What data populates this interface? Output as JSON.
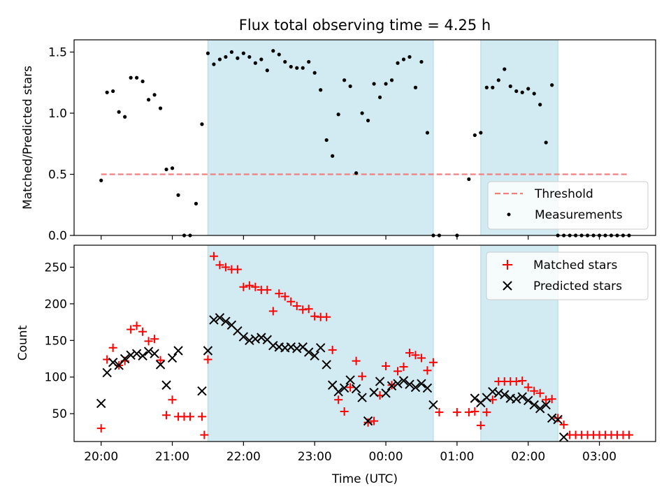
{
  "title": "Flux total observing time = 4.25 h",
  "colors": {
    "band": "#add8e6",
    "threshold": "#f08080",
    "matched": "#ff0000",
    "predicted": "#000000",
    "measurement": "#000000"
  },
  "chart_data": [
    {
      "type": "scatter",
      "xlabel": "",
      "ylabel": "Matched/Predicted stars",
      "ylim": [
        0,
        1.6
      ],
      "xlim_hours": [
        19.62,
        27.79
      ],
      "yticks": [
        0.0,
        0.5,
        1.0,
        1.5
      ],
      "ytick_labels": [
        "0.0",
        "0.5",
        "1.0",
        "1.5"
      ],
      "legend_position": "lower-right",
      "shaded_intervals": [
        [
          "21:30",
          "00:40"
        ],
        [
          "01:20",
          "02:25"
        ]
      ],
      "threshold": {
        "name": "Threshold",
        "value": 0.5,
        "x_start": "20:00",
        "x_end": "03:25"
      },
      "series": [
        {
          "name": "Measurements",
          "x": [
            "20:00",
            "20:05",
            "20:10",
            "20:15",
            "20:20",
            "20:25",
            "20:30",
            "20:35",
            "20:40",
            "20:45",
            "20:50",
            "20:55",
            "21:00",
            "21:05",
            "21:10",
            "21:15",
            "21:20",
            "21:25",
            "21:30",
            "21:35",
            "21:40",
            "21:45",
            "21:50",
            "21:55",
            "22:00",
            "22:05",
            "22:10",
            "22:15",
            "22:20",
            "22:25",
            "22:30",
            "22:35",
            "22:40",
            "22:45",
            "22:50",
            "22:55",
            "23:00",
            "23:05",
            "23:10",
            "23:15",
            "23:20",
            "23:25",
            "23:30",
            "23:35",
            "23:40",
            "23:45",
            "23:50",
            "23:55",
            "00:00",
            "00:05",
            "00:10",
            "00:15",
            "00:20",
            "00:25",
            "00:30",
            "00:35",
            "00:40",
            "00:45",
            "01:00",
            "01:10",
            "01:15",
            "01:20",
            "01:25",
            "01:30",
            "01:35",
            "01:40",
            "01:45",
            "01:50",
            "01:55",
            "02:00",
            "02:05",
            "02:10",
            "02:15",
            "02:20",
            "02:25",
            "02:30",
            "02:35",
            "02:40",
            "02:45",
            "02:50",
            "02:55",
            "03:00",
            "03:05",
            "03:10",
            "03:15",
            "03:20",
            "03:25"
          ],
          "y": [
            0.45,
            1.17,
            1.18,
            1.01,
            0.97,
            1.29,
            1.29,
            1.26,
            1.11,
            1.15,
            1.04,
            0.54,
            0.55,
            0.33,
            0.0,
            0.0,
            0.26,
            0.91,
            1.49,
            1.4,
            1.44,
            1.46,
            1.5,
            1.45,
            1.49,
            1.46,
            1.41,
            1.44,
            1.35,
            1.51,
            1.48,
            1.42,
            1.38,
            1.37,
            1.37,
            1.42,
            1.33,
            1.19,
            0.78,
            0.65,
            0.99,
            1.27,
            1.22,
            0.51,
            1.0,
            0.94,
            1.24,
            1.13,
            1.24,
            1.27,
            1.41,
            1.44,
            1.46,
            1.21,
            1.42,
            0.84,
            0.0,
            0.0,
            0.0,
            0.46,
            0.82,
            0.84,
            1.21,
            1.21,
            1.27,
            1.36,
            1.22,
            1.18,
            1.17,
            1.2,
            1.16,
            1.07,
            0.76,
            1.23,
            0.0,
            0.0,
            0.0,
            0.0,
            0.0,
            0.0,
            0.0,
            0.0,
            0.0,
            0.0,
            0.0,
            0.0,
            0.0
          ]
        }
      ]
    },
    {
      "type": "scatter",
      "xlabel": "Time (UTC)",
      "ylabel": "Count",
      "ylim": [
        12,
        280
      ],
      "xlim_hours": [
        19.62,
        27.79
      ],
      "yticks": [
        50,
        100,
        150,
        200,
        250
      ],
      "ytick_labels": [
        "50",
        "100",
        "150",
        "200",
        "250"
      ],
      "xticks_hours": [
        20,
        21,
        22,
        23,
        24,
        25,
        26,
        27
      ],
      "xtick_labels": [
        "20:00",
        "21:00",
        "22:00",
        "23:00",
        "00:00",
        "01:00",
        "02:00",
        "03:00"
      ],
      "legend_position": "top-right",
      "shaded_intervals": [
        [
          "21:30",
          "00:40"
        ],
        [
          "01:20",
          "02:25"
        ]
      ],
      "series": [
        {
          "name": "Matched stars",
          "marker": "plus",
          "x": [
            "20:00",
            "20:05",
            "20:10",
            "20:15",
            "20:20",
            "20:25",
            "20:30",
            "20:35",
            "20:40",
            "20:45",
            "20:50",
            "20:55",
            "21:00",
            "21:05",
            "21:10",
            "21:15",
            "21:25",
            "21:27",
            "21:30",
            "21:35",
            "21:40",
            "21:45",
            "21:50",
            "21:55",
            "22:00",
            "22:05",
            "22:10",
            "22:15",
            "22:20",
            "22:25",
            "22:30",
            "22:35",
            "22:40",
            "22:45",
            "22:50",
            "22:55",
            "23:00",
            "23:05",
            "23:10",
            "23:15",
            "23:20",
            "23:25",
            "23:30",
            "23:35",
            "23:40",
            "23:45",
            "23:50",
            "23:55",
            "00:00",
            "00:05",
            "00:10",
            "00:15",
            "00:20",
            "00:25",
            "00:30",
            "00:35",
            "00:40",
            "00:45",
            "01:00",
            "01:10",
            "01:15",
            "01:20",
            "01:25",
            "01:30",
            "01:35",
            "01:40",
            "01:45",
            "01:50",
            "01:55",
            "02:00",
            "02:05",
            "02:10",
            "02:15",
            "02:20",
            "02:25",
            "02:30",
            "02:35",
            "02:40",
            "02:45",
            "02:50",
            "02:55",
            "03:00",
            "03:05",
            "03:10",
            "03:15",
            "03:20",
            "03:25"
          ],
          "y": [
            30,
            124,
            140,
            116,
            122,
            165,
            170,
            162,
            149,
            152,
            123,
            48,
            69,
            46,
            46,
            46,
            46,
            21,
            124,
            265,
            253,
            250,
            247,
            247,
            223,
            225,
            223,
            219,
            219,
            190,
            214,
            210,
            203,
            197,
            192,
            193,
            183,
            182,
            182,
            137,
            69,
            53,
            86,
            122,
            101,
            38,
            40,
            75,
            115,
            89,
            108,
            114,
            133,
            130,
            126,
            109,
            120,
            52,
            52,
            52,
            53,
            34,
            52,
            69,
            94,
            94,
            94,
            94,
            95,
            86,
            81,
            78,
            69,
            70,
            44,
            35,
            21,
            21,
            21,
            21,
            21,
            21,
            21,
            21,
            21,
            21,
            21
          ]
        },
        {
          "name": "Predicted stars",
          "marker": "x",
          "x": [
            "20:00",
            "20:05",
            "20:10",
            "20:15",
            "20:20",
            "20:25",
            "20:30",
            "20:35",
            "20:40",
            "20:45",
            "20:50",
            "20:55",
            "21:00",
            "21:05",
            "21:25",
            "21:30",
            "21:35",
            "21:40",
            "21:45",
            "21:50",
            "21:55",
            "22:00",
            "22:05",
            "22:10",
            "22:15",
            "22:20",
            "22:25",
            "22:30",
            "22:35",
            "22:40",
            "22:45",
            "22:50",
            "22:55",
            "23:00",
            "23:05",
            "23:10",
            "23:15",
            "23:20",
            "23:25",
            "23:30",
            "23:35",
            "23:40",
            "23:45",
            "23:50",
            "23:55",
            "00:00",
            "00:05",
            "00:10",
            "00:15",
            "00:20",
            "00:25",
            "00:30",
            "00:35",
            "00:40",
            "01:15",
            "01:20",
            "01:25",
            "01:30",
            "01:35",
            "01:40",
            "01:45",
            "01:50",
            "01:55",
            "02:00",
            "02:05",
            "02:10",
            "02:15",
            "02:20",
            "02:25",
            "02:30"
          ],
          "y": [
            64,
            106,
            120,
            116,
            125,
            130,
            132,
            129,
            135,
            132,
            117,
            89,
            126,
            136,
            81,
            136,
            178,
            181,
            176,
            171,
            163,
            155,
            150,
            152,
            154,
            151,
            143,
            141,
            140,
            141,
            139,
            141,
            134,
            129,
            140,
            117,
            89,
            80,
            85,
            96,
            84,
            72,
            40,
            79,
            94,
            78,
            88,
            91,
            95,
            90,
            86,
            91,
            85,
            62,
            71,
            65,
            72,
            80,
            78,
            76,
            71,
            70,
            73,
            68,
            62,
            57,
            62,
            44,
            42,
            18
          ]
        }
      ]
    }
  ]
}
